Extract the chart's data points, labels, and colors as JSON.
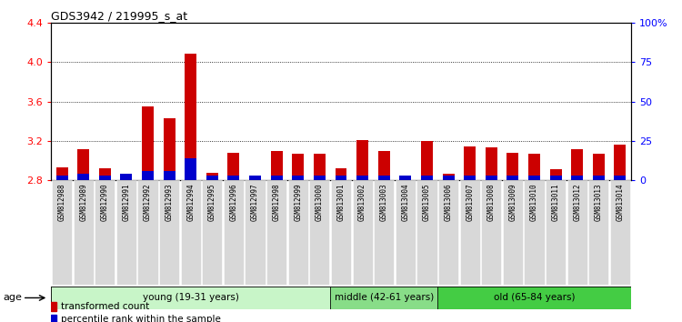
{
  "title": "GDS3942 / 219995_s_at",
  "samples": [
    "GSM812988",
    "GSM812989",
    "GSM812990",
    "GSM812991",
    "GSM812992",
    "GSM812993",
    "GSM812994",
    "GSM812995",
    "GSM812996",
    "GSM812997",
    "GSM812998",
    "GSM812999",
    "GSM813000",
    "GSM813001",
    "GSM813002",
    "GSM813003",
    "GSM813004",
    "GSM813005",
    "GSM813006",
    "GSM813007",
    "GSM813008",
    "GSM813009",
    "GSM813010",
    "GSM813011",
    "GSM813012",
    "GSM813013",
    "GSM813014"
  ],
  "red_values": [
    2.93,
    3.12,
    2.92,
    2.82,
    3.55,
    3.43,
    4.08,
    2.88,
    3.08,
    2.83,
    3.1,
    3.07,
    3.07,
    2.92,
    3.21,
    3.1,
    2.82,
    3.2,
    2.87,
    3.14,
    3.13,
    3.08,
    3.07,
    2.91,
    3.12,
    3.07,
    3.16
  ],
  "blue_values": [
    3,
    4,
    3,
    4,
    6,
    6,
    14,
    3,
    3,
    3,
    3,
    3,
    3,
    3,
    3,
    3,
    3,
    3,
    3,
    3,
    3,
    3,
    3,
    3,
    3,
    3,
    3
  ],
  "groups": [
    {
      "label": "young (19-31 years)",
      "start": 0,
      "end": 13,
      "color": "#c8f5c8"
    },
    {
      "label": "middle (42-61 years)",
      "start": 13,
      "end": 18,
      "color": "#88dd88"
    },
    {
      "label": "old (65-84 years)",
      "start": 18,
      "end": 27,
      "color": "#44cc44"
    }
  ],
  "ylim_left": [
    2.8,
    4.4
  ],
  "ylim_right": [
    0,
    100
  ],
  "yticks_left": [
    2.8,
    3.2,
    3.6,
    4.0,
    4.4
  ],
  "yticks_right": [
    0,
    25,
    50,
    75,
    100
  ],
  "ytick_labels_right": [
    "0",
    "25",
    "50",
    "75",
    "100%"
  ],
  "red_color": "#cc0000",
  "blue_color": "#0000cc",
  "tick_bg": "#d8d8d8",
  "plot_bg": "#ffffff"
}
